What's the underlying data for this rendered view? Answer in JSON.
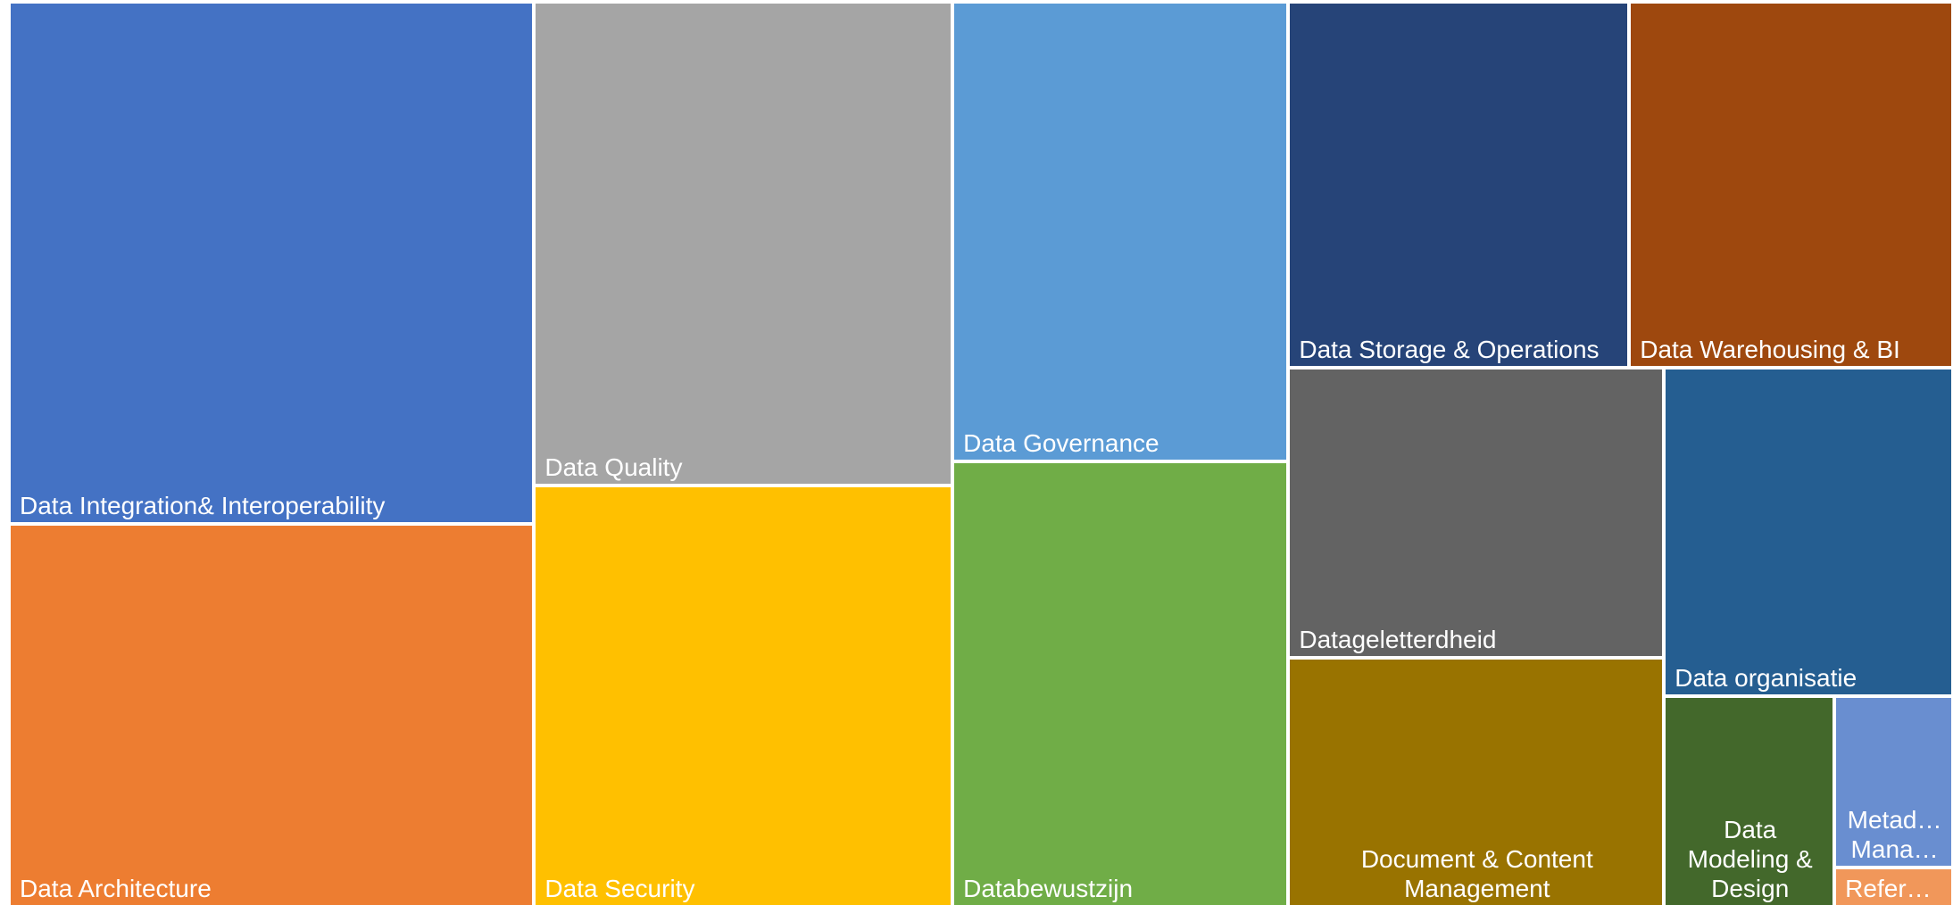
{
  "chart_data": {
    "type": "treemap",
    "categories": [
      "Data Integration& Interoperability",
      "Data Architecture",
      "Data Quality",
      "Data Security",
      "Data Governance",
      "Databewustzijn",
      "Data Storage & Operations",
      "Data Warehousing & BI",
      "Datageletterdheid",
      "Document & Content Management",
      "Data organisatie",
      "Data Modeling & Design",
      "Metad… Mana…",
      "Refer…"
    ],
    "values": [
      176,
      129,
      130,
      113,
      99,
      96,
      80,
      76,
      70,
      60,
      61,
      23,
      13,
      3
    ],
    "colors": [
      "#4472c4",
      "#ed7d31",
      "#a5a5a5",
      "#ffc000",
      "#5b9bd5",
      "#70ad47",
      "#264478",
      "#9e480e",
      "#636363",
      "#997300",
      "#255e91",
      "#43682b",
      "#698ed0",
      "#f1975a"
    ]
  }
}
